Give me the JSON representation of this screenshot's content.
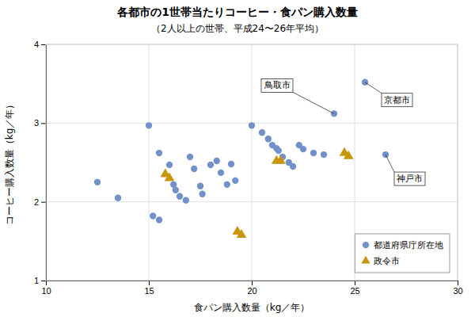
{
  "chart_data": {
    "type": "scatter",
    "title": "各都市の1世帯当たりコーヒー・食パン購入数量",
    "subtitle": "（2人以上の世帯、平成24〜26年平均）",
    "xlabel": "食パン購入数量（kg／年）",
    "ylabel": "コーヒー購入数量（kg／年）",
    "xlim": [
      10,
      30
    ],
    "ylim": [
      1,
      4
    ],
    "xticks": [
      10,
      15,
      20,
      25,
      30
    ],
    "yticks": [
      1,
      2,
      3,
      4
    ],
    "grid": true,
    "legend": "lower right",
    "series": [
      {
        "name": "都道府県庁所在地",
        "color": "#7191C8",
        "marker": "circle",
        "x": [
          12.5,
          13.5,
          15.0,
          15.2,
          15.5,
          15.5,
          16.0,
          16.2,
          16.3,
          16.5,
          16.8,
          17.0,
          17.2,
          17.5,
          17.6,
          18.0,
          18.3,
          18.5,
          18.8,
          19.0,
          19.2,
          20.0,
          20.5,
          20.8,
          21.0,
          21.2,
          21.3,
          21.5,
          21.8,
          22.0,
          22.3,
          22.5,
          23.0,
          23.5,
          24.0,
          25.5,
          26.5
        ],
        "values": [
          2.25,
          2.05,
          2.97,
          1.82,
          1.77,
          2.62,
          2.47,
          2.22,
          2.15,
          2.07,
          2.02,
          2.57,
          2.42,
          2.2,
          2.1,
          2.47,
          2.52,
          2.37,
          2.22,
          2.48,
          2.27,
          2.97,
          2.88,
          2.8,
          2.72,
          2.68,
          2.65,
          2.57,
          2.5,
          2.45,
          2.72,
          2.67,
          2.62,
          2.6,
          3.12,
          3.52,
          2.6
        ]
      },
      {
        "name": "政令市",
        "color": "#C8960A",
        "marker": "triangle",
        "x": [
          15.8,
          16.0,
          19.3,
          19.5,
          21.2,
          21.4,
          24.5,
          24.7
        ],
        "values": [
          2.35,
          2.3,
          1.62,
          1.58,
          2.52,
          2.52,
          2.62,
          2.58
        ]
      }
    ],
    "annotations": [
      {
        "text": "鳥取市",
        "x": 24.0,
        "y": 3.12
      },
      {
        "text": "京都市",
        "x": 25.5,
        "y": 3.52
      },
      {
        "text": "神戸市",
        "x": 26.5,
        "y": 2.6
      }
    ]
  }
}
